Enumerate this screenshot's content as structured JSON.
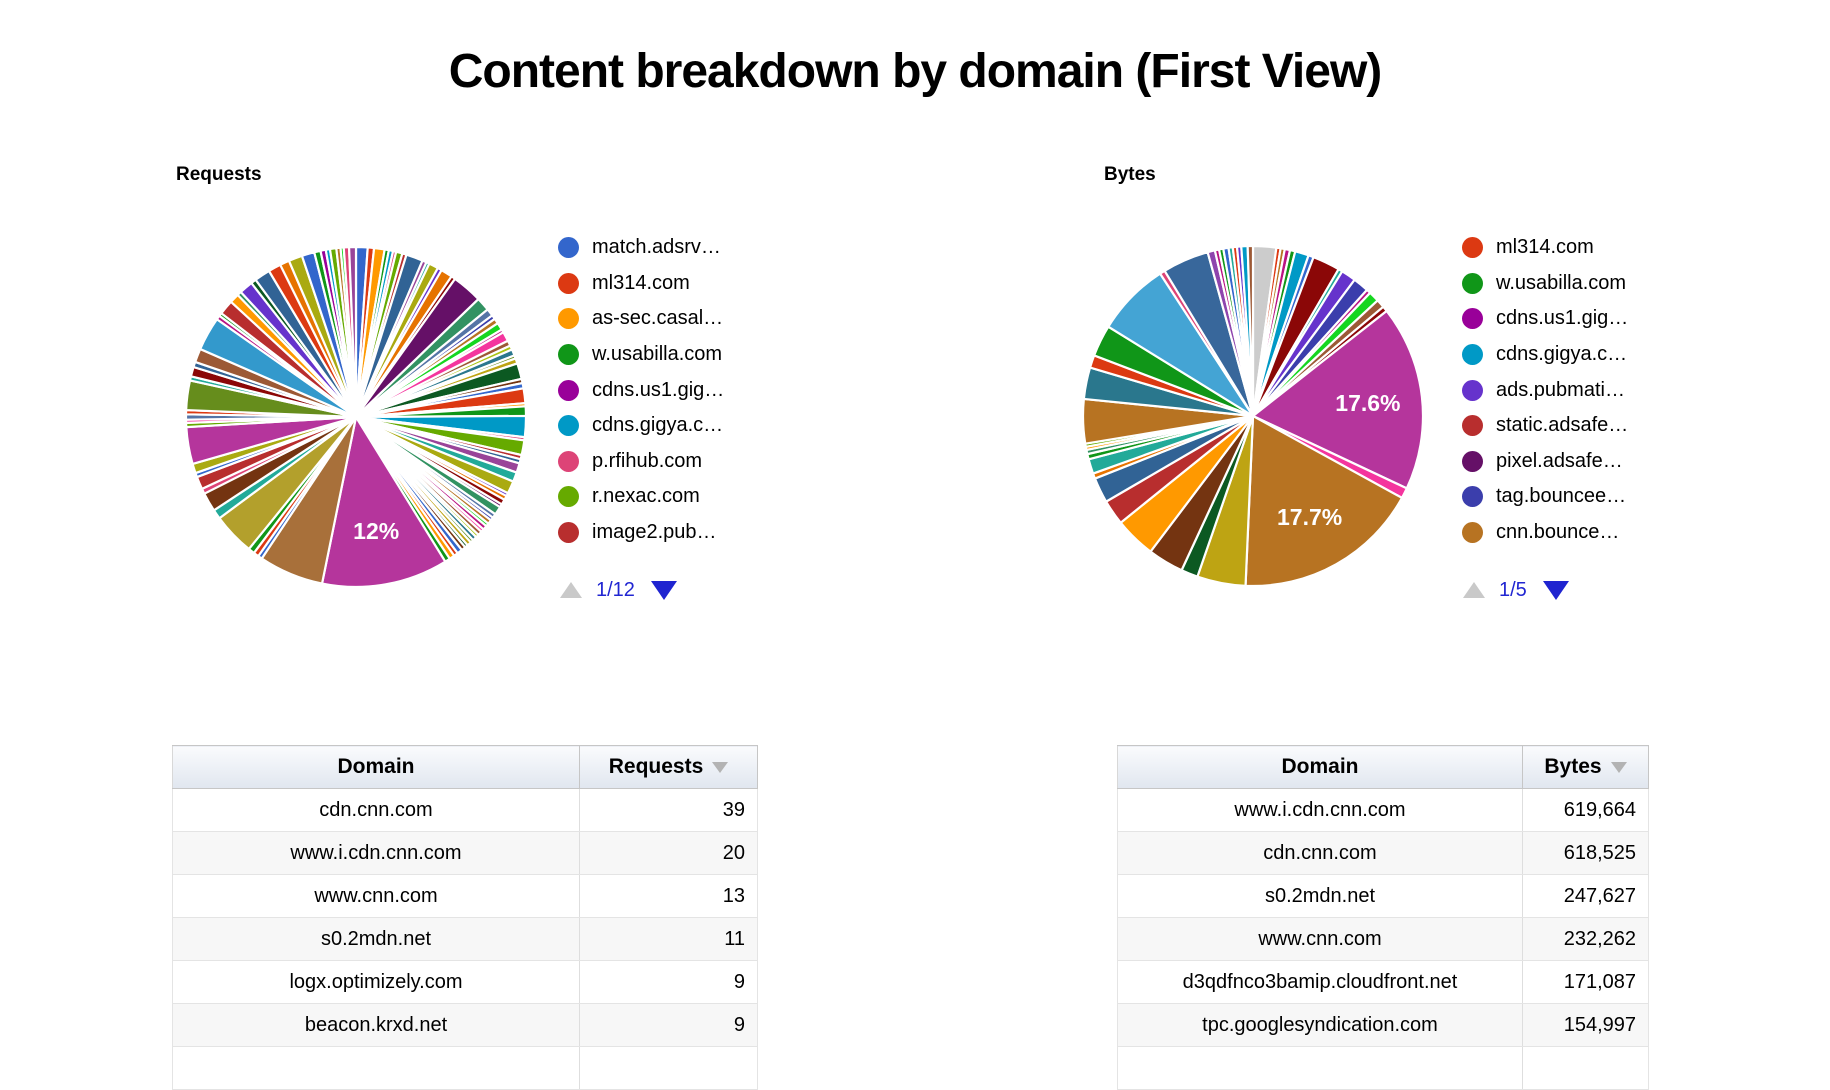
{
  "title": "Content breakdown by domain (First View)",
  "charts": [
    {
      "title": "Requests",
      "pager": {
        "current": "1/12",
        "up_arrow": "page-up",
        "down_arrow": "page-down"
      },
      "legend": [
        {
          "label": "match.adsrv…",
          "color": "#3366cc"
        },
        {
          "label": "ml314.com",
          "color": "#dc3912"
        },
        {
          "label": "as-sec.casal…",
          "color": "#ff9900"
        },
        {
          "label": "w.usabilla.com",
          "color": "#109618"
        },
        {
          "label": "cdns.us1.gig…",
          "color": "#990099"
        },
        {
          "label": "cdns.gigya.c…",
          "color": "#0099c6"
        },
        {
          "label": "p.rfihub.com",
          "color": "#dd4477"
        },
        {
          "label": "r.nexac.com",
          "color": "#66aa00"
        },
        {
          "label": "image2.pub…",
          "color": "#b82e2e"
        }
      ],
      "chart_data": {
        "type": "pie",
        "title": "Requests",
        "labeled_slices": [
          {
            "label": "12%",
            "value_pct": 12
          }
        ],
        "slices": [
          [
            1.1,
            "#3366cc"
          ],
          [
            0.6,
            "#dc3912"
          ],
          [
            1.0,
            "#ff9900"
          ],
          [
            0.4,
            "#109618"
          ],
          [
            0.4,
            "#0099c6"
          ],
          [
            0.3,
            "#dd4477"
          ],
          [
            0.6,
            "#66aa00"
          ],
          [
            0.4,
            "#b82e2e"
          ],
          [
            1.6,
            "#316395"
          ],
          [
            0.4,
            "#994499"
          ],
          [
            0.3,
            "#22aa99"
          ],
          [
            0.9,
            "#aaaa11"
          ],
          [
            0.4,
            "#6633cc"
          ],
          [
            1.1,
            "#e67300"
          ],
          [
            0.4,
            "#8b0707"
          ],
          [
            2.9,
            "#651067"
          ],
          [
            1.3,
            "#329262"
          ],
          [
            0.7,
            "#5574a6"
          ],
          [
            0.4,
            "#3b3eac"
          ],
          [
            0.5,
            "#b77322"
          ],
          [
            0.7,
            "#16d620"
          ],
          [
            0.3,
            "#b91383"
          ],
          [
            0.9,
            "#f4359e"
          ],
          [
            0.5,
            "#9c5935"
          ],
          [
            0.4,
            "#a9c413"
          ],
          [
            0.6,
            "#2a778d"
          ],
          [
            0.3,
            "#668d1c"
          ],
          [
            0.5,
            "#bea413"
          ],
          [
            1.5,
            "#0c5922"
          ],
          [
            0.4,
            "#743411"
          ],
          [
            0.5,
            "#3366cc"
          ],
          [
            1.4,
            "#dc3912"
          ],
          [
            0.3,
            "#ff9900"
          ],
          [
            0.9,
            "#109618"
          ],
          [
            2.0,
            "#0099c6"
          ],
          [
            0.3,
            "#dd4477"
          ],
          [
            1.4,
            "#66aa00"
          ],
          [
            0.4,
            "#b82e2e"
          ],
          [
            0.4,
            "#316395"
          ],
          [
            0.9,
            "#994499"
          ],
          [
            0.9,
            "#22aa99"
          ],
          [
            1.2,
            "#aaaa11"
          ],
          [
            0.3,
            "#6633cc"
          ],
          [
            0.4,
            "#e67300"
          ],
          [
            0.5,
            "#8b0707"
          ],
          [
            0.3,
            "#651067"
          ],
          [
            0.8,
            "#329262"
          ],
          [
            0.4,
            "#5574a6"
          ],
          [
            0.3,
            "#3b3eac"
          ],
          [
            0.4,
            "#b77322"
          ],
          [
            0.3,
            "#16d620"
          ],
          [
            0.4,
            "#b91383"
          ],
          [
            0.3,
            "#f4359e"
          ],
          [
            0.4,
            "#9c5935"
          ],
          [
            0.3,
            "#a9c413"
          ],
          [
            0.4,
            "#2a778d"
          ],
          [
            0.3,
            "#668d1c"
          ],
          [
            0.4,
            "#bea413"
          ],
          [
            0.3,
            "#0c5922"
          ],
          [
            0.4,
            "#743411"
          ],
          [
            0.5,
            "#3366cc"
          ],
          [
            0.4,
            "#dc3912"
          ],
          [
            0.5,
            "#ff9900"
          ],
          [
            0.5,
            "#109618"
          ],
          [
            12.0,
            "#b5359c",
            "12%"
          ],
          [
            6.15,
            "#a8703a"
          ],
          [
            0.4,
            "#3366cc"
          ],
          [
            0.5,
            "#dc3912"
          ],
          [
            0.6,
            "#109618"
          ],
          [
            4.0,
            "#b3a02c"
          ],
          [
            0.9,
            "#22aa99"
          ],
          [
            1.8,
            "#743411"
          ],
          [
            0.5,
            "#dd4477"
          ],
          [
            1.2,
            "#b82e2e"
          ],
          [
            0.4,
            "#3366cc"
          ],
          [
            0.9,
            "#aaaa11"
          ],
          [
            3.5,
            "#b5359c"
          ],
          [
            0.4,
            "#66aa00"
          ],
          [
            0.3,
            "#f4359e"
          ],
          [
            0.5,
            "#5574a6"
          ],
          [
            0.4,
            "#dc3912"
          ],
          [
            2.8,
            "#668d1c"
          ],
          [
            0.4,
            "#22aa99"
          ],
          [
            0.9,
            "#8b0707"
          ],
          [
            0.5,
            "#316395"
          ],
          [
            1.3,
            "#9c5935"
          ],
          [
            3.2,
            "#3399cc"
          ],
          [
            0.4,
            "#b91383"
          ],
          [
            0.3,
            "#109618"
          ],
          [
            1.4,
            "#b82e2e"
          ],
          [
            0.9,
            "#ff9900"
          ],
          [
            0.4,
            "#329262"
          ],
          [
            1.3,
            "#6633cc"
          ],
          [
            0.5,
            "#0c5922"
          ],
          [
            1.5,
            "#316395"
          ],
          [
            1.2,
            "#dc3912"
          ],
          [
            0.9,
            "#e67300"
          ],
          [
            1.3,
            "#aaaa11"
          ],
          [
            1.2,
            "#3366cc"
          ],
          [
            0.6,
            "#109618"
          ],
          [
            0.5,
            "#990099"
          ],
          [
            0.4,
            "#0099c6"
          ],
          [
            0.6,
            "#66aa00"
          ],
          [
            0.4,
            "#b77322"
          ],
          [
            0.3,
            "#16d620"
          ],
          [
            0.5,
            "#dd4477"
          ],
          [
            0.65,
            "#994499"
          ]
        ]
      }
    },
    {
      "title": "Bytes",
      "pager": {
        "current": "1/5",
        "up_arrow": "page-up",
        "down_arrow": "page-down"
      },
      "legend": [
        {
          "label": "ml314.com",
          "color": "#dc3912"
        },
        {
          "label": "w.usabilla.com",
          "color": "#109618"
        },
        {
          "label": "cdns.us1.gig…",
          "color": "#990099"
        },
        {
          "label": "cdns.gigya.c…",
          "color": "#0099c6"
        },
        {
          "label": "ads.pubmati…",
          "color": "#6633cc"
        },
        {
          "label": "static.adsafe…",
          "color": "#b82e2e"
        },
        {
          "label": "pixel.adsafe…",
          "color": "#651067"
        },
        {
          "label": "tag.bouncee…",
          "color": "#3b3eac"
        },
        {
          "label": "cnn.bounce…",
          "color": "#b77322"
        }
      ],
      "chart_data": {
        "type": "pie",
        "title": "Bytes",
        "labeled_slices": [
          {
            "label": "17.6%",
            "value_pct": 17.6
          },
          {
            "label": "17.7%",
            "value_pct": 17.7
          }
        ],
        "slices": [
          [
            2.2,
            "#cccccc"
          ],
          [
            0.4,
            "#dc3912"
          ],
          [
            0.4,
            "#b77322"
          ],
          [
            0.5,
            "#b91383"
          ],
          [
            0.5,
            "#109618"
          ],
          [
            1.3,
            "#0099c6"
          ],
          [
            0.5,
            "#3366cc"
          ],
          [
            2.6,
            "#8b0707"
          ],
          [
            0.4,
            "#22aa99"
          ],
          [
            1.4,
            "#6633cc"
          ],
          [
            1.5,
            "#3b3eac"
          ],
          [
            0.4,
            "#b91383"
          ],
          [
            1.0,
            "#16d620"
          ],
          [
            0.8,
            "#9c5935"
          ],
          [
            0.5,
            "#8b0707"
          ],
          [
            17.6,
            "#b5359c",
            "17.6%"
          ],
          [
            1.0,
            "#f4359e"
          ],
          [
            17.7,
            "#b77322",
            "17.7%"
          ],
          [
            4.6,
            "#bea413"
          ],
          [
            1.6,
            "#0c5922"
          ],
          [
            3.4,
            "#743411"
          ],
          [
            3.9,
            "#ff9900"
          ],
          [
            2.4,
            "#b82e2e"
          ],
          [
            2.4,
            "#316395"
          ],
          [
            0.5,
            "#e67300"
          ],
          [
            1.4,
            "#22aa99"
          ],
          [
            0.5,
            "#109618"
          ],
          [
            0.4,
            "#329262"
          ],
          [
            0.3,
            "#ff9900"
          ],
          [
            0.3,
            "#66aa00"
          ],
          [
            4.2,
            "#b77322"
          ],
          [
            3.0,
            "#2a778d"
          ],
          [
            1.2,
            "#dc3912"
          ],
          [
            3.0,
            "#109618"
          ],
          [
            7.0,
            "#44a4d4"
          ],
          [
            0.5,
            "#dd4477"
          ],
          [
            4.4,
            "#38679b"
          ],
          [
            0.7,
            "#8e44ad"
          ],
          [
            0.4,
            "#b91383"
          ],
          [
            0.4,
            "#109618"
          ],
          [
            0.5,
            "#3366cc"
          ],
          [
            0.4,
            "#22aa99"
          ],
          [
            0.4,
            "#dc3912"
          ],
          [
            0.4,
            "#6633cc"
          ],
          [
            0.6,
            "#0099c6"
          ],
          [
            0.5,
            "#9c5935"
          ]
        ]
      }
    }
  ],
  "tables": [
    {
      "columns": [
        "Domain",
        "Requests"
      ],
      "sorted_column": "Requests",
      "sort_direction": "desc",
      "rows": [
        [
          "cdn.cnn.com",
          "39"
        ],
        [
          "www.i.cdn.cnn.com",
          "20"
        ],
        [
          "www.cnn.com",
          "13"
        ],
        [
          "s0.2mdn.net",
          "11"
        ],
        [
          "logx.optimizely.com",
          "9"
        ],
        [
          "beacon.krxd.net",
          "9"
        ]
      ]
    },
    {
      "columns": [
        "Domain",
        "Bytes"
      ],
      "sorted_column": "Bytes",
      "sort_direction": "desc",
      "rows": [
        [
          "www.i.cdn.cnn.com",
          "619,664"
        ],
        [
          "cdn.cnn.com",
          "618,525"
        ],
        [
          "s0.2mdn.net",
          "247,627"
        ],
        [
          "www.cnn.com",
          "232,262"
        ],
        [
          "d3qdfnco3bamip.cloudfront.net",
          "171,087"
        ],
        [
          "tpc.googlesyndication.com",
          "154,997"
        ]
      ]
    }
  ]
}
